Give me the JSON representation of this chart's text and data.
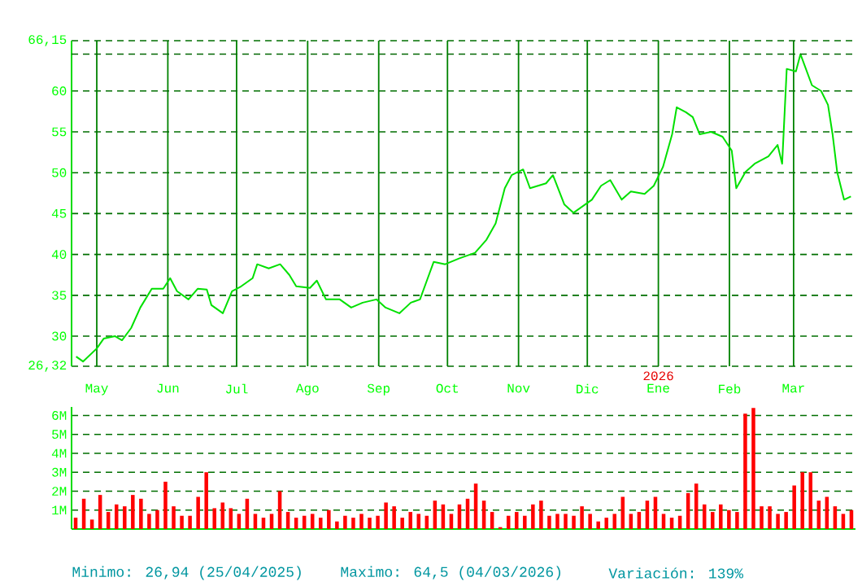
{
  "chart_data": [
    {
      "type": "line",
      "x": [
        "2025-04-22",
        "2025-04-25",
        "2025-05-01",
        "2025-05-04",
        "2025-05-09",
        "2025-05-12",
        "2025-05-16",
        "2025-05-20",
        "2025-05-25",
        "2025-05-30",
        "2025-06-02",
        "2025-06-05",
        "2025-06-10",
        "2025-06-14",
        "2025-06-18",
        "2025-06-20",
        "2025-06-25",
        "2025-06-29",
        "2025-07-03",
        "2025-07-08",
        "2025-07-10",
        "2025-07-15",
        "2025-07-20",
        "2025-07-24",
        "2025-07-27",
        "2025-08-02",
        "2025-08-05",
        "2025-08-09",
        "2025-08-15",
        "2025-08-20",
        "2025-08-25",
        "2025-08-31",
        "2025-09-04",
        "2025-09-10",
        "2025-09-15",
        "2025-09-19",
        "2025-09-22",
        "2025-09-25",
        "2025-09-30",
        "2025-10-06",
        "2025-10-13",
        "2025-10-18",
        "2025-10-22",
        "2025-10-26",
        "2025-10-29",
        "2025-11-03",
        "2025-11-06",
        "2025-11-13",
        "2025-11-16",
        "2025-11-21",
        "2025-11-25",
        "2025-11-30",
        "2025-12-03",
        "2025-12-07",
        "2025-12-11",
        "2025-12-16",
        "2025-12-20",
        "2025-12-26",
        "2025-12-30",
        "2026-01-03",
        "2026-01-07",
        "2026-01-09",
        "2026-01-13",
        "2026-01-16",
        "2026-01-19",
        "2026-01-24",
        "2026-01-29",
        "2026-02-02",
        "2026-02-04",
        "2026-02-08",
        "2026-02-12",
        "2026-02-18",
        "2026-02-22",
        "2026-02-24",
        "2026-02-26",
        "2026-03-02",
        "2026-03-04",
        "2026-03-09",
        "2026-03-13",
        "2026-03-16",
        "2026-03-18",
        "2026-03-20",
        "2026-03-23",
        "2026-03-26"
      ],
      "series": [
        {
          "color": "#00e000",
          "values": [
            27.5,
            26.9,
            28.5,
            29.7,
            30.0,
            29.5,
            31.0,
            33.5,
            35.8,
            35.8,
            37.1,
            35.5,
            34.5,
            35.8,
            35.7,
            33.8,
            32.8,
            35.5,
            36.1,
            37.1,
            38.8,
            38.3,
            38.8,
            37.5,
            36.1,
            35.9,
            36.8,
            34.5,
            34.5,
            33.5,
            34.1,
            34.5,
            33.5,
            32.8,
            34.1,
            34.5,
            36.8,
            39.1,
            38.8,
            39.5,
            40.2,
            41.8,
            43.8,
            48.1,
            49.7,
            50.4,
            48.1,
            48.7,
            49.7,
            46.1,
            45.1,
            46.1,
            46.7,
            48.4,
            49.1,
            46.7,
            47.7,
            47.4,
            48.4,
            50.7,
            54.7,
            58.0,
            57.4,
            56.8,
            54.7,
            55.0,
            54.4,
            52.7,
            48.1,
            50.1,
            51.1,
            52.0,
            53.4,
            51.1,
            62.7,
            62.4,
            64.5,
            60.7,
            60.0,
            58.3,
            54.7,
            50.1,
            46.7,
            47.1
          ]
        }
      ],
      "xlim": [
        "2025-04-20",
        "2026-03-28"
      ],
      "xticks": [
        {
          "value": "2025-05-01",
          "label": "May"
        },
        {
          "value": "2025-06-01",
          "label": "Jun"
        },
        {
          "value": "2025-07-01",
          "label": "Jul"
        },
        {
          "value": "2025-08-01",
          "label": "Ago"
        },
        {
          "value": "2025-09-01",
          "label": "Sep"
        },
        {
          "value": "2025-10-01",
          "label": "Oct"
        },
        {
          "value": "2025-11-01",
          "label": "Nov"
        },
        {
          "value": "2025-12-01",
          "label": "Dic"
        },
        {
          "value": "2026-01-01",
          "label": "Ene"
        },
        {
          "value": "2026-02-01",
          "label": "Feb"
        },
        {
          "value": "2026-03-01",
          "label": "Mar"
        }
      ],
      "ylim": [
        26.32,
        66.15
      ],
      "yticks": [
        {
          "value": 26.32,
          "label": "26,32"
        },
        30,
        35,
        40,
        45,
        50,
        55,
        60,
        {
          "value": 66.15,
          "label": "66,15"
        }
      ],
      "grid": true,
      "ref_lines": [
        {
          "axis": "y",
          "value": 64.5,
          "color": "#006600",
          "line_style": "dashed"
        }
      ],
      "annotations": [
        "2026",
        "Minimo: 26,94 (25/04/2025)",
        "Maximo: 64,5 (04/03/2026)",
        "Variación: 139%"
      ]
    },
    {
      "type": "bar",
      "categories": [
        null,
        null,
        null,
        null,
        null,
        null,
        null,
        null,
        null,
        null,
        null,
        null,
        null,
        null,
        null,
        null,
        null,
        null,
        null,
        null,
        null,
        null,
        null,
        null,
        null,
        null,
        null,
        null,
        null,
        null,
        null,
        null,
        null,
        null,
        null,
        null,
        null,
        null,
        null,
        null,
        null,
        null,
        null,
        null,
        null,
        null,
        null,
        null,
        null,
        null,
        null,
        null,
        null,
        null,
        null,
        null,
        null,
        null,
        null,
        null,
        null,
        null,
        null,
        null,
        null,
        null,
        null,
        null,
        null,
        null,
        null,
        null,
        null,
        null,
        null,
        null,
        null,
        null,
        null,
        null,
        null,
        null,
        null,
        null,
        null,
        null,
        null,
        null,
        null,
        null,
        null,
        null,
        null,
        null,
        null,
        null
      ],
      "series": [
        {
          "color": "#ff0000",
          "values": [
            0.6,
            1.6,
            0.5,
            1.8,
            0.9,
            1.3,
            1.2,
            1.8,
            1.6,
            0.8,
            1.0,
            2.5,
            1.2,
            0.7,
            0.7,
            1.7,
            3.0,
            1.1,
            1.4,
            1.1,
            0.8,
            1.6,
            0.8,
            0.6,
            0.8,
            2.0,
            0.9,
            0.6,
            0.7,
            0.8,
            0.6,
            1.0,
            0.4,
            0.7,
            0.6,
            0.8,
            0.6,
            0.7,
            1.4,
            1.2,
            0.6,
            0.9,
            0.8,
            0.7,
            1.5,
            1.3,
            0.8,
            1.3,
            1.6,
            2.4,
            1.5,
            0.9,
            0.1,
            0.7,
            0.9,
            0.7,
            1.3,
            1.5,
            0.7,
            0.8,
            0.8,
            0.7,
            1.2,
            0.8,
            0.4,
            0.6,
            0.8,
            1.7,
            0.8,
            0.9,
            1.5,
            1.7,
            0.8,
            0.6,
            0.7,
            1.9,
            2.4,
            1.3,
            0.9,
            1.3,
            1.0,
            0.9,
            6.1,
            6.4,
            1.2,
            1.2,
            0.8,
            0.9,
            2.3,
            3.0,
            3.0,
            1.5,
            1.7,
            1.2,
            0.8,
            1.0
          ]
        }
      ],
      "ylim": [
        0,
        6.45
      ],
      "yticks": [
        {
          "value": 1,
          "label": "1M"
        },
        {
          "value": 2,
          "label": "2M"
        },
        {
          "value": 3,
          "label": "3M"
        },
        {
          "value": 4,
          "label": "4M"
        },
        {
          "value": 5,
          "label": "5M"
        },
        {
          "value": 6,
          "label": "6M"
        }
      ],
      "grid": "y"
    }
  ]
}
